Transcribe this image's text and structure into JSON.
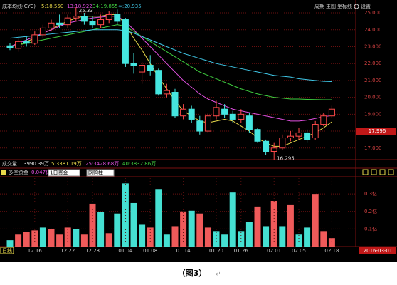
{
  "toolbar": {
    "items": [
      "周期",
      "主图",
      "坐标线",
      "设置"
    ]
  },
  "chart_data": [
    {
      "type": "candlestick",
      "title": "成本均线(CYC)",
      "open": [
        23.05,
        22.9,
        23.3,
        23.2,
        23.7,
        24.1,
        24.4,
        24.3,
        24.7,
        24.8,
        24.5,
        24.3,
        24.6,
        24.9,
        24.6,
        22.0,
        21.5,
        21.9,
        21.6,
        20.2,
        20.3,
        18.9,
        19.3,
        18.6,
        18.0,
        18.9,
        19.3,
        19.0,
        18.7,
        18.9,
        18.1,
        17.4,
        16.8,
        17.0,
        17.6,
        17.7,
        17.9,
        17.6,
        18.4,
        18.9
      ],
      "high": [
        23.2,
        23.5,
        23.6,
        23.9,
        24.3,
        24.6,
        24.9,
        24.9,
        25.33,
        25.0,
        24.8,
        24.9,
        25.1,
        25.2,
        24.7,
        22.6,
        22.1,
        22.5,
        21.7,
        20.8,
        20.5,
        19.6,
        19.5,
        18.9,
        19.1,
        19.8,
        19.6,
        19.2,
        19.3,
        19.1,
        18.2,
        17.5,
        17.3,
        17.8,
        18.0,
        18.2,
        18.1,
        18.6,
        19.1,
        19.5
      ],
      "low": [
        22.8,
        22.7,
        23.0,
        23.1,
        23.5,
        23.9,
        24.1,
        24.1,
        24.5,
        24.3,
        24.1,
        24.1,
        24.4,
        24.3,
        21.8,
        21.4,
        20.8,
        21.3,
        20.1,
        20.0,
        18.8,
        18.7,
        18.5,
        17.8,
        17.9,
        18.7,
        18.8,
        18.5,
        18.5,
        17.9,
        17.3,
        16.6,
        16.295,
        16.9,
        17.4,
        17.5,
        17.3,
        17.5,
        18.3,
        18.8
      ],
      "close": [
        22.95,
        23.3,
        23.2,
        23.7,
        24.1,
        24.4,
        24.3,
        24.7,
        24.8,
        24.5,
        24.3,
        24.6,
        24.9,
        24.5,
        22.0,
        21.9,
        21.9,
        21.6,
        20.2,
        20.4,
        18.9,
        19.3,
        18.7,
        18.0,
        18.9,
        19.4,
        19.0,
        18.7,
        19.0,
        18.1,
        17.4,
        16.8,
        17.0,
        17.6,
        17.7,
        17.9,
        17.5,
        18.4,
        18.9,
        19.3
      ],
      "up_color": "#ff4a4a",
      "down_color": "#45e6e0",
      "series": [
        {
          "name": "5:18.550",
          "color": "#e8d84a",
          "values": [
            23.0,
            23.1,
            23.3,
            23.5,
            23.8,
            24.0,
            24.3,
            24.5,
            24.7,
            24.8,
            24.8,
            24.8,
            24.9,
            24.9,
            24.3,
            23.5,
            22.8,
            22.0,
            21.2,
            20.5,
            19.8,
            19.2,
            18.9,
            18.6,
            18.5,
            18.6,
            18.7,
            18.6,
            18.3,
            18.0,
            17.6,
            17.3,
            17.1,
            17.1,
            17.3,
            17.5,
            17.7,
            17.9,
            18.2,
            18.55
          ]
        },
        {
          "name": "13:18.922",
          "color": "#e050e0",
          "values": [
            23.0,
            23.2,
            23.4,
            23.6,
            23.8,
            24.0,
            24.2,
            24.4,
            24.5,
            24.6,
            24.7,
            24.75,
            24.8,
            24.8,
            24.5,
            24.0,
            23.5,
            23.0,
            22.5,
            22.0,
            21.5,
            21.0,
            20.6,
            20.2,
            19.9,
            19.7,
            19.5,
            19.3,
            19.2,
            19.1,
            19.0,
            18.9,
            18.8,
            18.7,
            18.6,
            18.6,
            18.65,
            18.75,
            18.85,
            18.922
          ]
        },
        {
          "name": "34:19.855",
          "color": "#40d040",
          "values": [
            23.0,
            23.1,
            23.2,
            23.3,
            23.4,
            23.5,
            23.6,
            23.7,
            23.8,
            23.9,
            24.0,
            24.1,
            24.2,
            24.3,
            24.2,
            23.9,
            23.6,
            23.3,
            23.0,
            22.7,
            22.4,
            22.1,
            21.8,
            21.5,
            21.3,
            21.1,
            20.9,
            20.7,
            20.5,
            20.35,
            20.2,
            20.1,
            20.0,
            19.95,
            19.9,
            19.9,
            19.88,
            19.87,
            19.86,
            19.855
          ]
        },
        {
          "name": "∞:20.935",
          "color": "#40c8e8",
          "values": [
            23.5,
            23.55,
            23.6,
            23.65,
            23.7,
            23.75,
            23.8,
            23.85,
            23.9,
            23.95,
            24.0,
            24.0,
            24.0,
            24.0,
            23.95,
            23.8,
            23.6,
            23.4,
            23.2,
            23.0,
            22.8,
            22.6,
            22.45,
            22.3,
            22.15,
            22.0,
            21.9,
            21.8,
            21.7,
            21.6,
            21.5,
            21.4,
            21.3,
            21.25,
            21.2,
            21.1,
            21.05,
            21.0,
            20.95,
            20.935
          ]
        }
      ],
      "ylim": [
        16.4,
        25.55
      ],
      "yticks": [
        {
          "value": 17,
          "label": "17.000"
        },
        {
          "value": 18,
          "label": "18.000"
        },
        {
          "value": 19,
          "label": "19.000"
        },
        {
          "value": 20,
          "label": "20.000"
        },
        {
          "value": 21,
          "label": "21.000"
        },
        {
          "value": 22,
          "label": "22.000"
        },
        {
          "value": 23,
          "label": "23.000"
        },
        {
          "value": 24,
          "label": "24.000"
        },
        {
          "value": 25,
          "label": "25.000"
        }
      ],
      "current_price": 17.996,
      "grid": true
    },
    {
      "type": "bar",
      "title": "多空资金",
      "subtitle": "0.047亿",
      "categories": [
        null,
        null,
        null,
        "12.16",
        null,
        null,
        null,
        "12.22",
        null,
        null,
        "12.28",
        null,
        null,
        null,
        "01.04",
        null,
        null,
        "01.08",
        null,
        null,
        null,
        "01.14",
        null,
        null,
        null,
        "01.20",
        null,
        null,
        "01.26",
        null,
        null,
        null,
        "02.01",
        null,
        null,
        "02.05",
        null,
        null,
        null,
        "02.18"
      ],
      "values": [
        0.036,
        0.068,
        0.084,
        0.092,
        0.108,
        0.1,
        0.068,
        0.108,
        0.1,
        0.068,
        0.244,
        0.196,
        0.076,
        0.188,
        0.36,
        0.248,
        0.124,
        0.108,
        0.328,
        0.068,
        0.116,
        0.2,
        0.204,
        0.188,
        0.108,
        0.088,
        0.068,
        0.308,
        0.088,
        0.14,
        0.228,
        0.116,
        0.26,
        0.116,
        0.236,
        0.068,
        0.108,
        0.3,
        0.088,
        0.048
      ],
      "colors": [
        "#45e0d2",
        "#f05a5a",
        "#f05a5a",
        "#f05a5a",
        "#45e0d2",
        "#f05a5a",
        "#f05a5a",
        "#f05a5a",
        "#45e0d2",
        "#f05a5a",
        "#f05a5a",
        "#45e0d2",
        "#f05a5a",
        "#45e0d2",
        "#45e0d2",
        "#45e0d2",
        "#45e0d2",
        "#f05a5a",
        "#45e0d2",
        "#45e0d2",
        "#f05a5a",
        "#f05a5a",
        "#45e0d2",
        "#f05a5a",
        "#f05a5a",
        "#45e0d2",
        "#45e0d2",
        "#45e0d2",
        "#45e0d2",
        "#45e0d2",
        "#f05a5a",
        "#45e0d2",
        "#f05a5a",
        "#45e0d2",
        "#f05a5a",
        "#45e0d2",
        "#45e0d2",
        "#f05a5a",
        "#f05a5a",
        "#f05a5a"
      ],
      "ylim": [
        0,
        0.39
      ],
      "yticks": [
        {
          "value": 0.1,
          "label": "0.1亿"
        },
        {
          "value": 0.2,
          "label": "0.2亿"
        },
        {
          "value": 0.3,
          "label": "0.3亿"
        }
      ],
      "grid": true
    }
  ],
  "volume_header": {
    "title": "成交量",
    "items": [
      "3990.39万",
      "5:3381.19万",
      "25:3428.68万",
      "40:3832.86万"
    ]
  },
  "controls": {
    "period_select": "1日资金",
    "style_select": "网购柱"
  },
  "status": {
    "period": "日线",
    "date": "2016-03-01"
  },
  "caption": "（图3）"
}
